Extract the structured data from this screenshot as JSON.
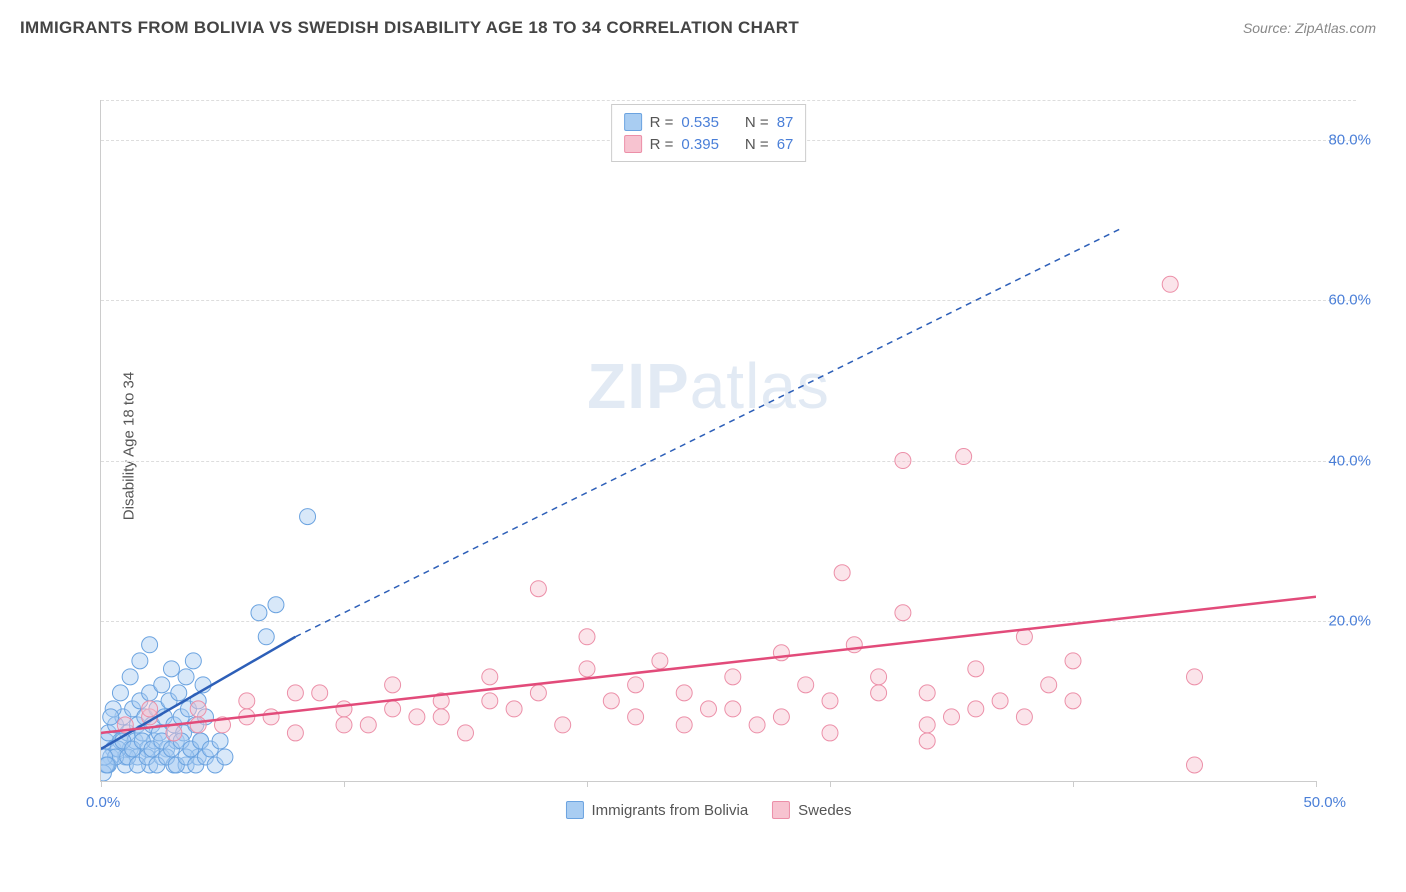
{
  "title": "IMMIGRANTS FROM BOLIVIA VS SWEDISH DISABILITY AGE 18 TO 34 CORRELATION CHART",
  "source": "Source: ZipAtlas.com",
  "y_axis_label": "Disability Age 18 to 34",
  "watermark_bold": "ZIP",
  "watermark_rest": "atlas",
  "chart": {
    "type": "scatter",
    "background_color": "#ffffff",
    "grid_color": "#dddddd",
    "axis_color": "#cccccc",
    "xlim": [
      0,
      50
    ],
    "ylim": [
      0,
      85
    ],
    "x_origin_label": "0.0%",
    "x_max_label": "50.0%",
    "y_ticks": [
      20,
      40,
      60,
      80
    ],
    "y_tick_labels": [
      "20.0%",
      "40.0%",
      "60.0%",
      "80.0%"
    ],
    "x_tick_positions": [
      0,
      10,
      20,
      30,
      40,
      50
    ],
    "tick_fontsize": 15,
    "tick_color": "#4a7fd8",
    "marker_radius": 8,
    "marker_opacity": 0.45,
    "series": [
      {
        "name": "Immigrants from Bolivia",
        "color_fill": "#a9cdf2",
        "color_stroke": "#6ba3e0",
        "r_label": "R =",
        "r_value": "0.535",
        "n_label": "N =",
        "n_value": "87",
        "trend": {
          "x1": 0,
          "y1": 4,
          "x2": 8,
          "y2": 18,
          "dash_x2": 42,
          "dash_y2": 69,
          "width": 2.5,
          "color": "#2d5fb8"
        },
        "points": [
          [
            0.2,
            5
          ],
          [
            0.3,
            6
          ],
          [
            0.5,
            4
          ],
          [
            0.6,
            7
          ],
          [
            0.8,
            5
          ],
          [
            0.9,
            8
          ],
          [
            1.0,
            3
          ],
          [
            1.1,
            6
          ],
          [
            1.2,
            4
          ],
          [
            1.3,
            9
          ],
          [
            1.4,
            5
          ],
          [
            1.5,
            7
          ],
          [
            1.6,
            10
          ],
          [
            1.7,
            6
          ],
          [
            1.8,
            8
          ],
          [
            1.9,
            4
          ],
          [
            2.0,
            11
          ],
          [
            2.1,
            7
          ],
          [
            2.2,
            5
          ],
          [
            2.3,
            9
          ],
          [
            2.4,
            6
          ],
          [
            2.5,
            12
          ],
          [
            2.6,
            8
          ],
          [
            2.7,
            4
          ],
          [
            2.8,
            10
          ],
          [
            2.9,
            14
          ],
          [
            3.0,
            7
          ],
          [
            3.1,
            5
          ],
          [
            3.2,
            11
          ],
          [
            3.3,
            8
          ],
          [
            3.4,
            6
          ],
          [
            3.5,
            13
          ],
          [
            3.6,
            9
          ],
          [
            3.7,
            4
          ],
          [
            3.8,
            15
          ],
          [
            3.9,
            7
          ],
          [
            4.0,
            10
          ],
          [
            4.1,
            5
          ],
          [
            4.2,
            12
          ],
          [
            4.3,
            8
          ],
          [
            0.4,
            3
          ],
          [
            0.7,
            4
          ],
          [
            1.0,
            2
          ],
          [
            1.5,
            3
          ],
          [
            2.0,
            2
          ],
          [
            2.5,
            3
          ],
          [
            3.0,
            2
          ],
          [
            3.5,
            2
          ],
          [
            4.0,
            3
          ],
          [
            0.3,
            2
          ],
          [
            0.5,
            9
          ],
          [
            0.8,
            11
          ],
          [
            1.2,
            13
          ],
          [
            1.6,
            15
          ],
          [
            2.0,
            17
          ],
          [
            0.2,
            2
          ],
          [
            0.4,
            8
          ],
          [
            0.6,
            3
          ],
          [
            0.9,
            5
          ],
          [
            1.1,
            3
          ],
          [
            1.3,
            4
          ],
          [
            1.5,
            2
          ],
          [
            1.7,
            5
          ],
          [
            1.9,
            3
          ],
          [
            2.1,
            4
          ],
          [
            2.3,
            2
          ],
          [
            2.5,
            5
          ],
          [
            2.7,
            3
          ],
          [
            2.9,
            4
          ],
          [
            3.1,
            2
          ],
          [
            3.3,
            5
          ],
          [
            3.5,
            3
          ],
          [
            3.7,
            4
          ],
          [
            3.9,
            2
          ],
          [
            4.1,
            5
          ],
          [
            4.3,
            3
          ],
          [
            4.5,
            4
          ],
          [
            4.7,
            2
          ],
          [
            4.9,
            5
          ],
          [
            5.1,
            3
          ],
          [
            6.5,
            21
          ],
          [
            6.8,
            18
          ],
          [
            7.2,
            22
          ],
          [
            8.5,
            33
          ],
          [
            0.1,
            1
          ],
          [
            0.15,
            3
          ],
          [
            0.25,
            2
          ]
        ]
      },
      {
        "name": "Swedes",
        "color_fill": "#f7c3d0",
        "color_stroke": "#ec8fa8",
        "r_label": "R =",
        "r_value": "0.395",
        "n_label": "N =",
        "n_value": "67",
        "trend": {
          "x1": 0,
          "y1": 6,
          "x2": 50,
          "y2": 23,
          "width": 2.5,
          "color": "#e24b7a"
        },
        "points": [
          [
            1,
            7
          ],
          [
            2,
            8
          ],
          [
            3,
            6
          ],
          [
            4,
            9
          ],
          [
            5,
            7
          ],
          [
            6,
            10
          ],
          [
            7,
            8
          ],
          [
            8,
            6
          ],
          [
            9,
            11
          ],
          [
            10,
            9
          ],
          [
            11,
            7
          ],
          [
            12,
            12
          ],
          [
            13,
            8
          ],
          [
            14,
            10
          ],
          [
            15,
            6
          ],
          [
            16,
            13
          ],
          [
            17,
            9
          ],
          [
            18,
            11
          ],
          [
            19,
            7
          ],
          [
            20,
            14
          ],
          [
            21,
            10
          ],
          [
            22,
            8
          ],
          [
            23,
            15
          ],
          [
            24,
            11
          ],
          [
            25,
            9
          ],
          [
            26,
            13
          ],
          [
            27,
            7
          ],
          [
            28,
            16
          ],
          [
            29,
            12
          ],
          [
            30,
            10
          ],
          [
            31,
            17
          ],
          [
            32,
            13
          ],
          [
            33,
            21
          ],
          [
            34,
            11
          ],
          [
            35,
            8
          ],
          [
            36,
            14
          ],
          [
            37,
            10
          ],
          [
            38,
            18
          ],
          [
            39,
            12
          ],
          [
            40,
            15
          ],
          [
            2,
            9
          ],
          [
            4,
            7
          ],
          [
            6,
            8
          ],
          [
            8,
            11
          ],
          [
            10,
            7
          ],
          [
            12,
            9
          ],
          [
            14,
            8
          ],
          [
            16,
            10
          ],
          [
            18,
            24
          ],
          [
            20,
            18
          ],
          [
            22,
            12
          ],
          [
            24,
            7
          ],
          [
            26,
            9
          ],
          [
            28,
            8
          ],
          [
            30.5,
            26
          ],
          [
            32,
            11
          ],
          [
            34,
            7
          ],
          [
            36,
            9
          ],
          [
            38,
            8
          ],
          [
            40,
            10
          ],
          [
            45,
            13
          ],
          [
            33,
            40
          ],
          [
            35.5,
            40.5
          ],
          [
            44,
            62
          ],
          [
            45,
            2
          ],
          [
            34,
            5
          ],
          [
            30,
            6
          ]
        ]
      }
    ]
  },
  "legend_bottom": [
    {
      "swatch_fill": "#a9cdf2",
      "swatch_stroke": "#6ba3e0",
      "label": "Immigrants from Bolivia"
    },
    {
      "swatch_fill": "#f7c3d0",
      "swatch_stroke": "#ec8fa8",
      "label": "Swedes"
    }
  ]
}
